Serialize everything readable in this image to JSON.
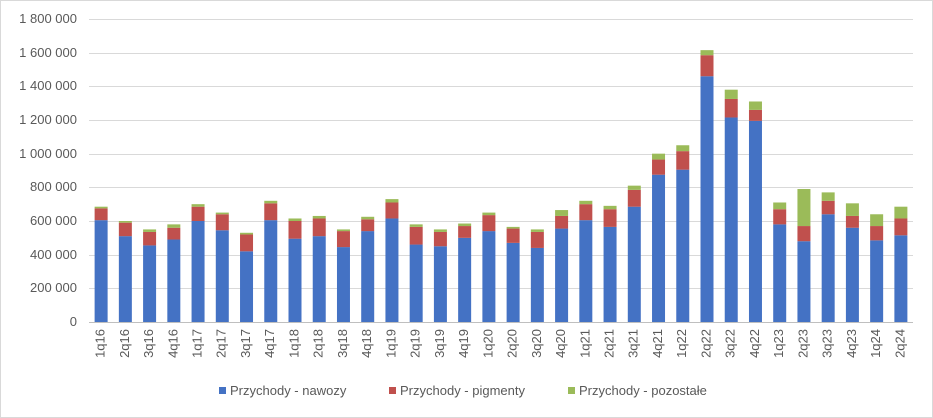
{
  "chart_data": {
    "type": "bar",
    "stacked": true,
    "title": "",
    "xlabel": "",
    "ylabel": "",
    "ylim": [
      0,
      1800000
    ],
    "yticks": [
      0,
      200000,
      400000,
      600000,
      800000,
      1000000,
      1200000,
      1400000,
      1600000,
      1800000
    ],
    "ytick_labels": [
      "0",
      "200 000",
      "400 000",
      "600 000",
      "800 000",
      "1 000 000",
      "1 200 000",
      "1 400 000",
      "1 600 000",
      "1 800 000"
    ],
    "grid": true,
    "legend_position": "bottom",
    "categories": [
      "1q16",
      "2q16",
      "3q16",
      "4q16",
      "1q17",
      "2q17",
      "3q17",
      "4q17",
      "1q18",
      "2q18",
      "3q18",
      "4q18",
      "1q19",
      "2q19",
      "3q19",
      "4q19",
      "1q20",
      "2q20",
      "3q20",
      "4q20",
      "1q21",
      "2q21",
      "3q21",
      "4q21",
      "1q22",
      "2q22",
      "3q22",
      "4q22",
      "1q23",
      "2q23",
      "3q23",
      "4q23",
      "1q24",
      "2q24"
    ],
    "series": [
      {
        "name": "Przychody - nawozy",
        "color": "#4472C4",
        "values": [
          605000,
          510000,
          455000,
          490000,
          600000,
          545000,
          420000,
          605000,
          495000,
          510000,
          445000,
          540000,
          615000,
          460000,
          450000,
          500000,
          540000,
          470000,
          440000,
          555000,
          605000,
          565000,
          685000,
          875000,
          905000,
          1460000,
          1215000,
          1195000,
          580000,
          480000,
          640000,
          560000,
          485000,
          515000
        ]
      },
      {
        "name": "Przychody - pigmenty",
        "color": "#C0504D",
        "values": [
          70000,
          80000,
          80000,
          70000,
          85000,
          95000,
          100000,
          100000,
          105000,
          105000,
          95000,
          70000,
          95000,
          105000,
          85000,
          70000,
          95000,
          85000,
          95000,
          75000,
          95000,
          105000,
          100000,
          90000,
          110000,
          125000,
          110000,
          65000,
          90000,
          90000,
          80000,
          70000,
          85000,
          100000
        ]
      },
      {
        "name": "Przychody - pozostałe",
        "color": "#9BBB59",
        "values": [
          10000,
          10000,
          15000,
          20000,
          15000,
          10000,
          10000,
          15000,
          15000,
          15000,
          10000,
          15000,
          20000,
          15000,
          15000,
          15000,
          15000,
          10000,
          15000,
          35000,
          20000,
          20000,
          25000,
          35000,
          35000,
          30000,
          55000,
          50000,
          40000,
          220000,
          50000,
          75000,
          70000,
          70000
        ]
      }
    ]
  }
}
